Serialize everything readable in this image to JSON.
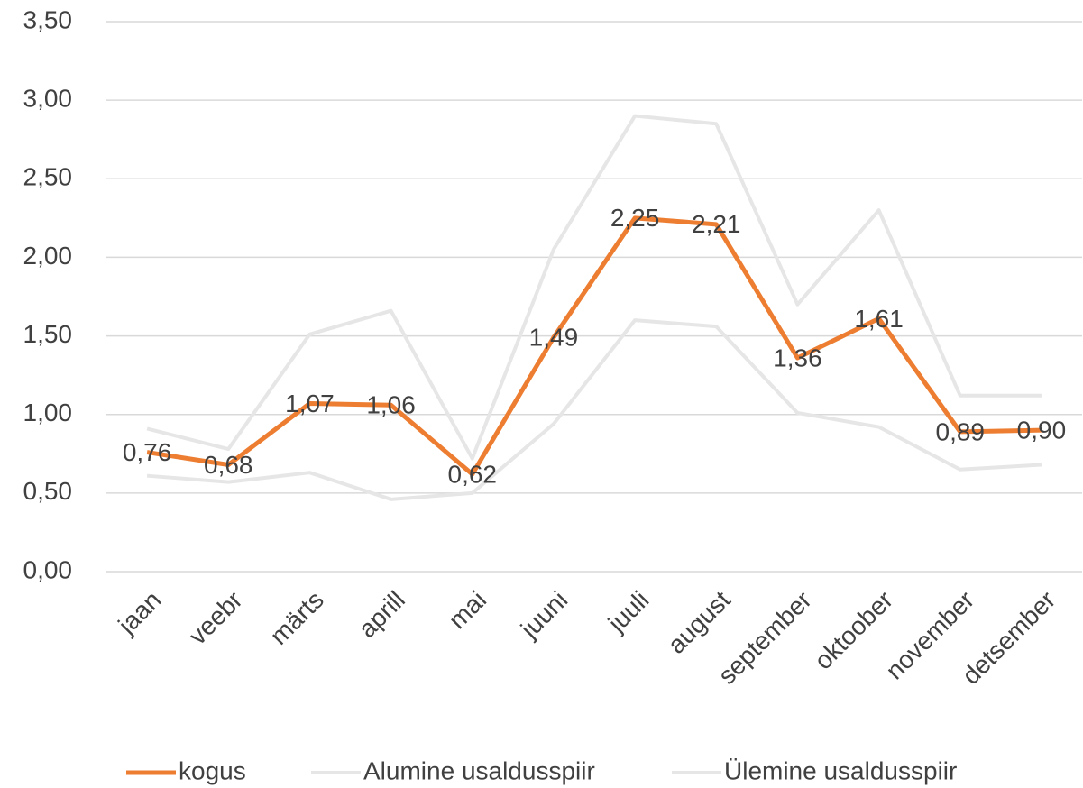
{
  "chart_data": {
    "type": "line",
    "categories": [
      "jaan",
      "veebr",
      "märts",
      "aprill",
      "mai",
      "juuni",
      "juuli",
      "august",
      "september",
      "oktoober",
      "november",
      "detsember"
    ],
    "series": [
      {
        "name": "kogus",
        "color": "#ed7d31",
        "values": [
          0.76,
          0.68,
          1.07,
          1.06,
          0.62,
          1.49,
          2.25,
          2.21,
          1.36,
          1.61,
          0.89,
          0.9
        ],
        "value_labels": [
          "0,76",
          "0,68",
          "1,07",
          "1,06",
          "0,62",
          "1,49",
          "2,25",
          "2,21",
          "1,36",
          "1,61",
          "0,89",
          "0,90"
        ]
      },
      {
        "name": "Alumine usaldusspiir",
        "color": "#e6e6e6",
        "values": [
          0.61,
          0.57,
          0.63,
          0.46,
          0.5,
          0.94,
          1.6,
          1.56,
          1.01,
          0.92,
          0.65,
          0.68
        ]
      },
      {
        "name": "Ülemine usaldusspiir",
        "color": "#e6e6e6",
        "values": [
          0.91,
          0.78,
          1.51,
          1.66,
          0.72,
          2.05,
          2.9,
          2.85,
          1.7,
          2.3,
          1.12,
          1.12
        ]
      }
    ],
    "ylim": [
      0,
      3.5
    ],
    "yticks": [
      {
        "value": 0,
        "label": "0,00"
      },
      {
        "value": 0.5,
        "label": "0,50"
      },
      {
        "value": 1,
        "label": "1,00"
      },
      {
        "value": 1.5,
        "label": "1,50"
      },
      {
        "value": 2,
        "label": "2,00"
      },
      {
        "value": 2.5,
        "label": "2,50"
      },
      {
        "value": 3,
        "label": "3,00"
      },
      {
        "value": 3.5,
        "label": "3,50"
      }
    ],
    "grid": true,
    "legend": "bottom"
  }
}
